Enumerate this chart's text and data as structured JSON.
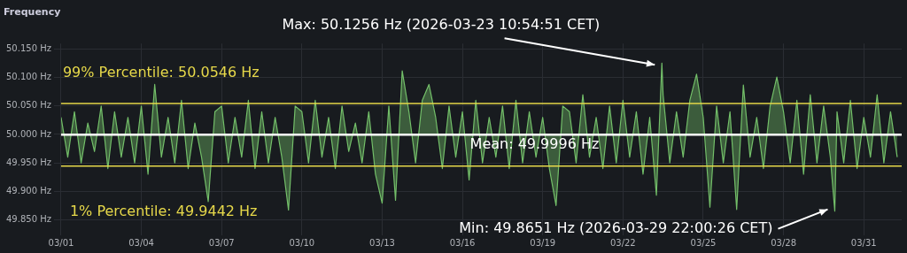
{
  "chart_data": {
    "type": "area",
    "title": "Frequency",
    "x": [
      "2026-03-01T00:00",
      "2026-03-01T06:00",
      "2026-03-01T12:00",
      "2026-03-01T18:00",
      "2026-03-02T00:00",
      "2026-03-02T06:00",
      "2026-03-02T12:00",
      "2026-03-02T18:00",
      "2026-03-03T00:00",
      "2026-03-03T06:00",
      "2026-03-03T12:00",
      "2026-03-03T18:00",
      "2026-03-04T00:00",
      "2026-03-04T06:00",
      "2026-03-04T12:00",
      "2026-03-04T18:00",
      "2026-03-05T00:00",
      "2026-03-05T06:00",
      "2026-03-05T12:00",
      "2026-03-05T18:00",
      "2026-03-06T00:00",
      "2026-03-06T06:00",
      "2026-03-06T12:00",
      "2026-03-06T18:00",
      "2026-03-07T00:00",
      "2026-03-07T06:00",
      "2026-03-07T12:00",
      "2026-03-07T18:00",
      "2026-03-08T00:00",
      "2026-03-08T06:00",
      "2026-03-08T12:00",
      "2026-03-08T18:00",
      "2026-03-09T00:00",
      "2026-03-09T06:00",
      "2026-03-09T12:00",
      "2026-03-09T18:00",
      "2026-03-10T00:00",
      "2026-03-10T06:00",
      "2026-03-10T12:00",
      "2026-03-10T18:00",
      "2026-03-11T00:00",
      "2026-03-11T06:00",
      "2026-03-11T12:00",
      "2026-03-11T18:00",
      "2026-03-12T00:00",
      "2026-03-12T06:00",
      "2026-03-12T12:00",
      "2026-03-12T18:00",
      "2026-03-13T00:00",
      "2026-03-13T06:00",
      "2026-03-13T12:00",
      "2026-03-13T18:00",
      "2026-03-14T00:00",
      "2026-03-14T06:00",
      "2026-03-14T12:00",
      "2026-03-14T18:00",
      "2026-03-15T00:00",
      "2026-03-15T06:00",
      "2026-03-15T12:00",
      "2026-03-15T18:00",
      "2026-03-16T00:00",
      "2026-03-16T06:00",
      "2026-03-16T12:00",
      "2026-03-16T18:00",
      "2026-03-17T00:00",
      "2026-03-17T06:00",
      "2026-03-17T12:00",
      "2026-03-17T18:00",
      "2026-03-18T00:00",
      "2026-03-18T06:00",
      "2026-03-18T12:00",
      "2026-03-18T18:00",
      "2026-03-19T00:00",
      "2026-03-19T06:00",
      "2026-03-19T12:00",
      "2026-03-19T18:00",
      "2026-03-20T00:00",
      "2026-03-20T06:00",
      "2026-03-20T12:00",
      "2026-03-20T18:00",
      "2026-03-21T00:00",
      "2026-03-21T06:00",
      "2026-03-21T12:00",
      "2026-03-21T18:00",
      "2026-03-22T00:00",
      "2026-03-22T06:00",
      "2026-03-22T12:00",
      "2026-03-22T18:00",
      "2026-03-23T00:00",
      "2026-03-23T06:00",
      "2026-03-23T10:54",
      "2026-03-23T12:00",
      "2026-03-23T18:00",
      "2026-03-24T00:00",
      "2026-03-24T06:00",
      "2026-03-24T12:00",
      "2026-03-24T18:00",
      "2026-03-25T00:00",
      "2026-03-25T06:00",
      "2026-03-25T12:00",
      "2026-03-25T18:00",
      "2026-03-26T00:00",
      "2026-03-26T06:00",
      "2026-03-26T12:00",
      "2026-03-26T18:00",
      "2026-03-27T00:00",
      "2026-03-27T06:00",
      "2026-03-27T12:00",
      "2026-03-27T18:00",
      "2026-03-28T00:00",
      "2026-03-28T06:00",
      "2026-03-28T12:00",
      "2026-03-28T18:00",
      "2026-03-29T00:00",
      "2026-03-29T06:00",
      "2026-03-29T12:00",
      "2026-03-29T18:00",
      "2026-03-29T22:00",
      "2026-03-30T00:00",
      "2026-03-30T06:00",
      "2026-03-30T12:00",
      "2026-03-30T18:00",
      "2026-03-31T00:00",
      "2026-03-31T06:00",
      "2026-03-31T12:00",
      "2026-03-31T18:00",
      "2026-04-01T00:00",
      "2026-04-01T06:00"
    ],
    "series": [
      {
        "color": "#73bf69",
        "values": [
          50.03,
          49.96,
          50.04,
          49.95,
          50.02,
          49.97,
          50.05,
          49.94,
          50.04,
          49.96,
          50.03,
          49.95,
          50.05,
          49.93,
          50.088,
          49.96,
          50.03,
          49.95,
          50.06,
          49.94,
          50.02,
          49.96,
          49.882,
          50.04,
          50.05,
          49.95,
          50.03,
          49.96,
          50.06,
          49.94,
          50.04,
          49.95,
          50.03,
          49.96,
          49.867,
          50.05,
          50.04,
          49.95,
          50.06,
          49.96,
          50.03,
          49.94,
          50.05,
          49.97,
          50.02,
          49.95,
          50.04,
          49.93,
          49.879,
          50.05,
          49.884,
          50.112,
          50.04,
          49.95,
          50.06,
          50.088,
          50.03,
          49.94,
          50.05,
          49.96,
          50.04,
          49.92,
          50.06,
          49.95,
          50.03,
          49.96,
          50.05,
          49.94,
          50.06,
          49.95,
          50.04,
          49.96,
          50.03,
          49.94,
          49.875,
          50.05,
          50.04,
          49.95,
          50.07,
          49.96,
          50.03,
          49.94,
          50.05,
          49.95,
          50.06,
          49.96,
          50.04,
          49.93,
          50.03,
          49.893,
          50.1256,
          50.07,
          49.95,
          50.04,
          49.96,
          50.06,
          50.106,
          50.03,
          49.872,
          50.05,
          49.95,
          50.04,
          49.868,
          50.087,
          49.96,
          50.03,
          49.94,
          50.05,
          50.101,
          50.04,
          49.95,
          50.06,
          49.93,
          50.07,
          49.95,
          50.05,
          49.96,
          49.8651,
          50.04,
          49.95,
          50.06,
          49.94,
          50.03,
          49.96,
          50.07,
          49.95,
          50.04,
          49.96
        ]
      }
    ],
    "xlim": [
      "2026-03-01T00:00",
      "2026-04-01T10:00"
    ],
    "xticks": [
      {
        "value": "2026-03-01",
        "label": "03/01"
      },
      {
        "value": "2026-03-04",
        "label": "03/04"
      },
      {
        "value": "2026-03-07",
        "label": "03/07"
      },
      {
        "value": "2026-03-10",
        "label": "03/10"
      },
      {
        "value": "2026-03-13",
        "label": "03/13"
      },
      {
        "value": "2026-03-16",
        "label": "03/16"
      },
      {
        "value": "2026-03-19",
        "label": "03/19"
      },
      {
        "value": "2026-03-22",
        "label": "03/22"
      },
      {
        "value": "2026-03-25",
        "label": "03/25"
      },
      {
        "value": "2026-03-28",
        "label": "03/28"
      },
      {
        "value": "2026-03-31",
        "label": "03/31"
      }
    ],
    "ylim": [
      49.835,
      50.16
    ],
    "yticks": [
      {
        "value": 49.85,
        "label": "49.850 Hz"
      },
      {
        "value": 49.9,
        "label": "49.900 Hz"
      },
      {
        "value": 49.95,
        "label": "49.950 Hz"
      },
      {
        "value": 50,
        "label": "50.000 Hz"
      },
      {
        "value": 50.05,
        "label": "50.050 Hz"
      },
      {
        "value": 50.1,
        "label": "50.100 Hz"
      },
      {
        "value": 50.15,
        "label": "50.150 Hz"
      }
    ],
    "ref_lines": [
      {
        "axis": "y",
        "value": 50.0546,
        "label": "99% Percentile: 50.0546 Hz",
        "color": "#e6d84a"
      },
      {
        "axis": "y",
        "value": 49.9996,
        "label": "Mean: 49.9996 Hz",
        "color": "#ffffff"
      },
      {
        "axis": "y",
        "value": 49.9442,
        "label": "1% Percentile: 49.9442 Hz",
        "color": "#e6d84a"
      }
    ],
    "annotations": [
      {
        "text": "Max: 50.1256 Hz (2026-03-23 10:54:51 CET)",
        "x": "2026-03-23T10:54",
        "y": 50.1256
      },
      {
        "text": "Min: 49.8651 Hz (2026-03-29 22:00:26 CET)",
        "x": "2026-03-29T22:00",
        "y": 49.8651
      }
    ],
    "grid": true,
    "legend": false,
    "marker": "none",
    "line_style": "solid"
  }
}
